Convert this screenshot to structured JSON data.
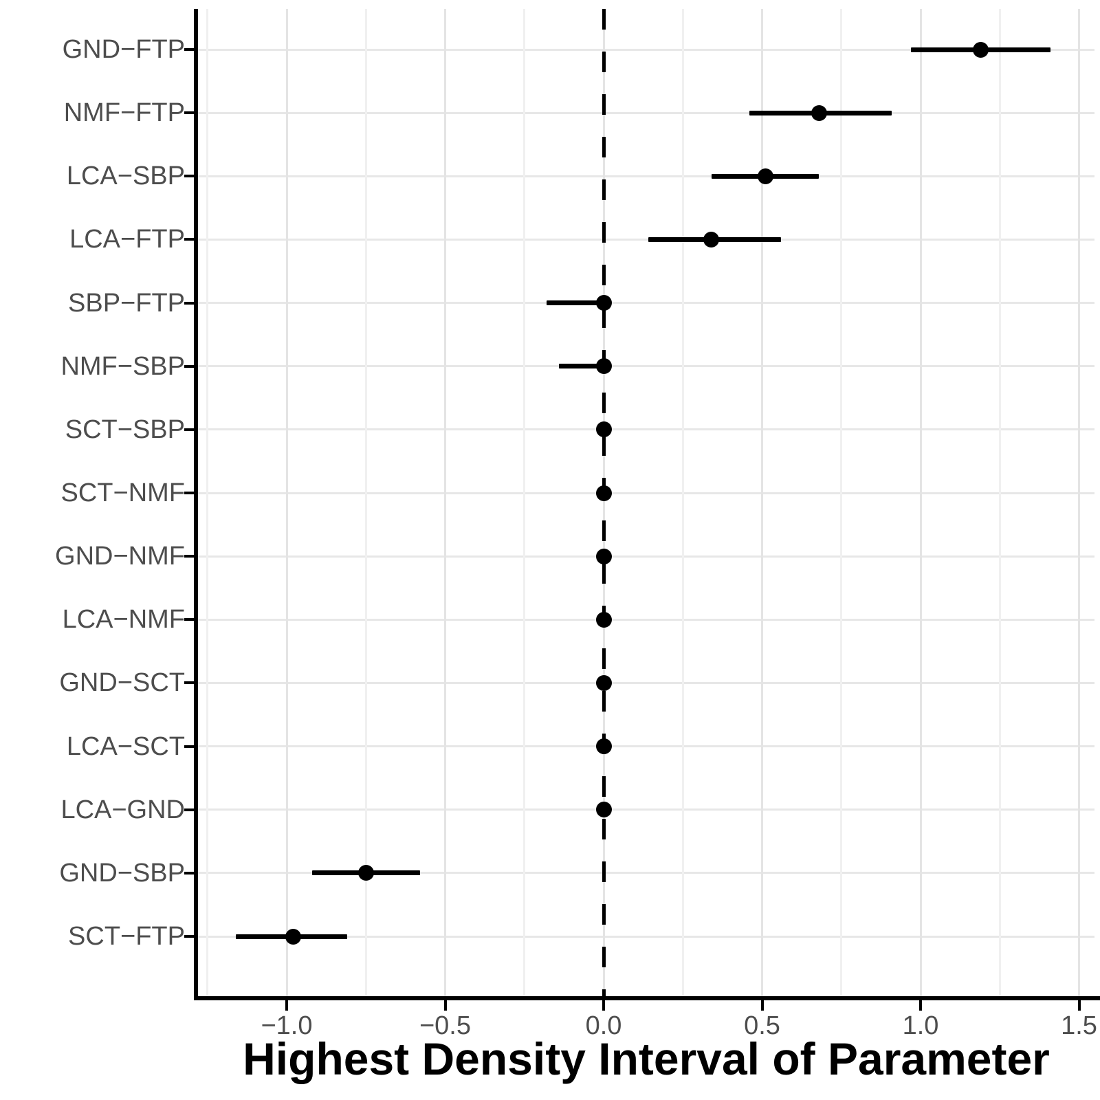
{
  "chart_data": {
    "type": "pointrange",
    "title": "",
    "xlabel": "Highest Density Interval of Parameter",
    "ylabel": "",
    "legend": "none",
    "grid": "on",
    "x_domain": [
      -1.28,
      1.55
    ],
    "x_ticks": [
      {
        "value": -1.0,
        "label": "−1.0"
      },
      {
        "value": -0.5,
        "label": "−0.5"
      },
      {
        "value": 0.0,
        "label": "0.0"
      },
      {
        "value": 0.5,
        "label": "0.5"
      },
      {
        "value": 1.0,
        "label": "1.0"
      },
      {
        "value": 1.5,
        "label": "1.5"
      }
    ],
    "x_minor_gridlines": [
      -1.25,
      -0.75,
      -0.25,
      0.25,
      0.75,
      1.25
    ],
    "reference_line": {
      "x": 0.0,
      "style": "dashed",
      "color": "#000000"
    },
    "rows": [
      {
        "label": "GND−FTP",
        "point": 1.19,
        "lower": 0.97,
        "upper": 1.41
      },
      {
        "label": "NMF−FTP",
        "point": 0.68,
        "lower": 0.46,
        "upper": 0.91
      },
      {
        "label": "LCA−SBP",
        "point": 0.51,
        "lower": 0.34,
        "upper": 0.68
      },
      {
        "label": "LCA−FTP",
        "point": 0.34,
        "lower": 0.14,
        "upper": 0.56
      },
      {
        "label": "SBP−FTP",
        "point": 0.0,
        "lower": -0.18,
        "upper": 0.02
      },
      {
        "label": "NMF−SBP",
        "point": 0.0,
        "lower": -0.14,
        "upper": 0.02
      },
      {
        "label": "SCT−SBP",
        "point": 0.0,
        "lower": -0.01,
        "upper": 0.01
      },
      {
        "label": "SCT−NMF",
        "point": 0.0,
        "lower": -0.01,
        "upper": 0.01
      },
      {
        "label": "GND−NMF",
        "point": 0.0,
        "lower": -0.01,
        "upper": 0.01
      },
      {
        "label": "LCA−NMF",
        "point": 0.0,
        "lower": -0.01,
        "upper": 0.01
      },
      {
        "label": "GND−SCT",
        "point": 0.0,
        "lower": -0.01,
        "upper": 0.01
      },
      {
        "label": "LCA−SCT",
        "point": 0.0,
        "lower": -0.01,
        "upper": 0.01
      },
      {
        "label": "LCA−GND",
        "point": 0.0,
        "lower": -0.01,
        "upper": 0.01
      },
      {
        "label": "GND−SBP",
        "point": -0.75,
        "lower": -0.92,
        "upper": -0.58
      },
      {
        "label": "SCT−FTP",
        "point": -0.98,
        "lower": -1.16,
        "upper": -0.81
      }
    ],
    "colors": {
      "point": "#000000",
      "interval": "#000000",
      "axis": "#000000",
      "tick_label": "#4d4d4d",
      "gridline_major": "#e4e4e4",
      "gridline_minor": "#f0f0f0",
      "background": "#ffffff"
    }
  }
}
